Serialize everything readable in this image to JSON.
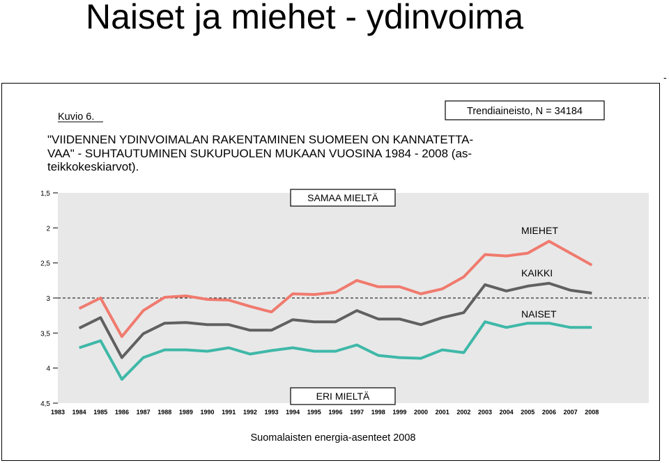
{
  "slide": {
    "title": "Naiset ja miehet - ydinvoima",
    "corner_mark": "-"
  },
  "figure": {
    "label": "Kuvio 6.",
    "source_box": "Trendiaineisto, N = 34184",
    "heading_lines": [
      "\"VIIDENNEN YDINVOIMALAN RAKENTAMINEN SUOMEEN ON KANNATETTA-",
      "VAA\" - SUHTAUTUMINEN SUKUPUOLEN MUKAAN VUOSINA 1984 - 2008 (as-",
      "teikkokeskiarvot)."
    ],
    "top_box": "SAMAA MIELTÄ",
    "bottom_box": "ERI MIELTÄ",
    "footer": "Suomalaisten energia-asenteet 2008"
  },
  "chart_data": {
    "type": "line",
    "x": [
      "1983",
      "1984",
      "1985",
      "1986",
      "1987",
      "1988",
      "1989",
      "1990",
      "1991",
      "1992",
      "1993",
      "1994",
      "1995",
      "1996",
      "1997",
      "1998",
      "1999",
      "2000",
      "2001",
      "2002",
      "2003",
      "2004",
      "2005",
      "2006",
      "2007",
      "2008"
    ],
    "ylim": [
      1.5,
      4.5
    ],
    "y_inverted": true,
    "y_ticks": [
      "1,5",
      "2",
      "2,5",
      "3",
      "3,5",
      "4",
      "4,5"
    ],
    "y_tick_values": [
      1.5,
      2,
      2.5,
      3,
      3.5,
      4,
      4.5
    ],
    "reference_line": 3.0,
    "grid": false,
    "series": [
      {
        "name": "MIEHET",
        "color": "#f07a6e",
        "values": [
          null,
          3.15,
          3.0,
          3.55,
          3.18,
          2.99,
          2.97,
          3.02,
          3.03,
          3.12,
          3.2,
          2.94,
          2.95,
          2.92,
          2.75,
          2.84,
          2.84,
          2.94,
          2.87,
          2.7,
          2.38,
          2.4,
          2.36,
          2.19,
          2.36,
          2.53
        ]
      },
      {
        "name": "KAIKKI",
        "color": "#606060",
        "values": [
          null,
          3.43,
          3.28,
          3.85,
          3.51,
          3.36,
          3.35,
          3.38,
          3.38,
          3.46,
          3.46,
          3.31,
          3.34,
          3.34,
          3.18,
          3.3,
          3.3,
          3.38,
          3.28,
          3.21,
          2.81,
          2.9,
          2.83,
          2.79,
          2.89,
          2.93
        ]
      },
      {
        "name": "NAISET",
        "color": "#3fb8a8",
        "values": [
          null,
          3.71,
          3.61,
          4.16,
          3.85,
          3.74,
          3.74,
          3.76,
          3.71,
          3.8,
          3.75,
          3.71,
          3.76,
          3.76,
          3.67,
          3.82,
          3.85,
          3.86,
          3.74,
          3.78,
          3.34,
          3.42,
          3.36,
          3.36,
          3.42,
          3.42
        ]
      }
    ]
  }
}
